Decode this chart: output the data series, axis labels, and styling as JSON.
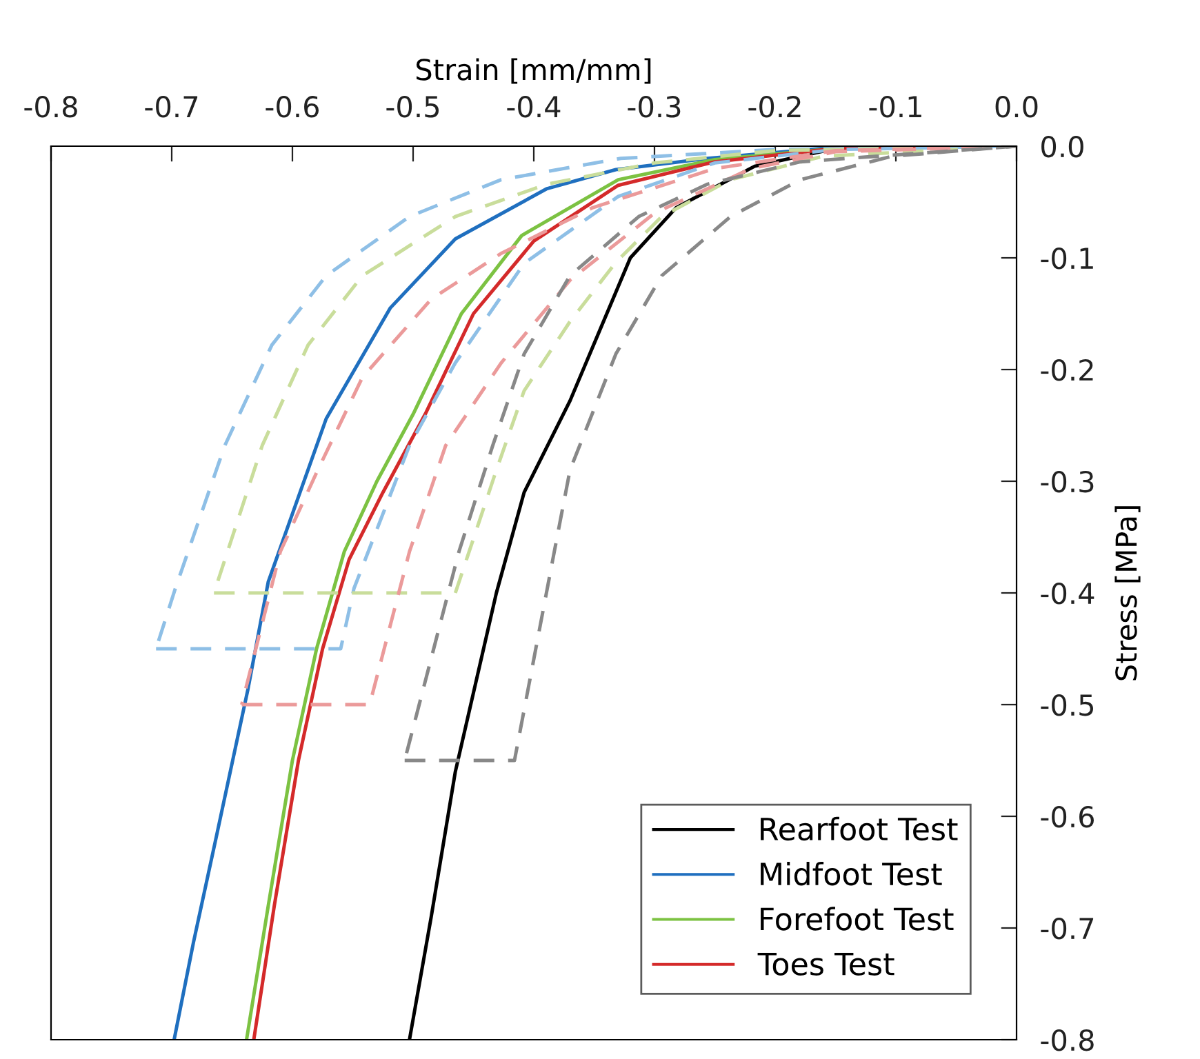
{
  "chart_data": {
    "type": "line",
    "xlabel": "Strain [mm/mm]",
    "ylabel": "Stress [MPa]",
    "xlim": [
      -0.8,
      0.0
    ],
    "ylim": [
      -0.8,
      0.0
    ],
    "xticks": [
      -0.8,
      -0.7,
      -0.6,
      -0.5,
      -0.4,
      -0.3,
      -0.2,
      -0.1,
      {
        "value": 0,
        "label": "0.0"
      }
    ],
    "yticks": [
      {
        "value": 0,
        "label": "0.0"
      },
      -0.1,
      -0.2,
      -0.3,
      -0.4,
      -0.5,
      -0.6,
      -0.7,
      -0.8
    ],
    "grid": false,
    "legend": "bottom right",
    "marker": "none",
    "series": [
      {
        "name": "Rearfoot Test",
        "color": "#000000",
        "line_style": "solid",
        "x": [
          0,
          -0.1,
          -0.15,
          -0.217,
          -0.282,
          -0.32,
          -0.37,
          -0.408,
          -0.431,
          -0.465,
          -0.485,
          -0.503
        ],
        "values": [
          0,
          0,
          -0.002,
          -0.018,
          -0.055,
          -0.1,
          -0.228,
          -0.31,
          -0.4,
          -0.56,
          -0.69,
          -0.8
        ]
      },
      {
        "name": "Midfoot Test",
        "color": "#1f6fbf",
        "line_style": "solid",
        "x": [
          0,
          -0.15,
          -0.256,
          -0.332,
          -0.389,
          -0.465,
          -0.519,
          -0.572,
          -0.62,
          -0.637,
          -0.663,
          -0.682,
          -0.698
        ],
        "values": [
          0,
          -0.001,
          -0.011,
          -0.021,
          -0.038,
          -0.083,
          -0.145,
          -0.244,
          -0.39,
          -0.487,
          -0.618,
          -0.713,
          -0.8
        ]
      },
      {
        "name": "Forefoot Test",
        "color": "#7cc242",
        "line_style": "solid",
        "x": [
          0,
          -0.15,
          -0.25,
          -0.33,
          -0.41,
          -0.46,
          -0.5,
          -0.53,
          -0.557,
          -0.58,
          -0.6,
          -0.62,
          -0.638
        ],
        "values": [
          0,
          -0.002,
          -0.012,
          -0.03,
          -0.08,
          -0.15,
          -0.24,
          -0.3,
          -0.363,
          -0.45,
          -0.55,
          -0.68,
          -0.8
        ]
      },
      {
        "name": "Toes Test",
        "color": "#d42a2a",
        "line_style": "solid",
        "x": [
          0,
          -0.15,
          -0.25,
          -0.33,
          -0.4,
          -0.45,
          -0.49,
          -0.525,
          -0.553,
          -0.575,
          -0.595,
          -0.615,
          -0.632
        ],
        "values": [
          0,
          -0.002,
          -0.014,
          -0.035,
          -0.085,
          -0.15,
          -0.24,
          -0.31,
          -0.37,
          -0.45,
          -0.55,
          -0.68,
          -0.8
        ]
      },
      {
        "color": "#8ebfe6",
        "line_style": "dashed",
        "x": [
          0,
          -0.2,
          -0.328,
          -0.427,
          -0.503,
          -0.572,
          -0.617,
          -0.656,
          -0.697,
          -0.713
        ],
        "values": [
          0,
          -0.003,
          -0.011,
          -0.03,
          -0.063,
          -0.116,
          -0.178,
          -0.268,
          -0.396,
          -0.45
        ]
      },
      {
        "color": "#8ebfe6",
        "line_style": "dashed",
        "x": [
          -0.713,
          -0.56,
          -0.549,
          -0.503,
          -0.465,
          -0.408,
          -0.33,
          -0.25,
          -0.15,
          0
        ],
        "values": [
          -0.45,
          -0.45,
          -0.396,
          -0.268,
          -0.194,
          -0.105,
          -0.045,
          -0.015,
          -0.003,
          0
        ]
      },
      {
        "color": "#c9dd9b",
        "line_style": "dashed",
        "x": [
          0,
          -0.2,
          -0.3,
          -0.389,
          -0.465,
          -0.542,
          -0.587,
          -0.625,
          -0.665
        ],
        "values": [
          0,
          -0.004,
          -0.015,
          -0.034,
          -0.063,
          -0.116,
          -0.178,
          -0.268,
          -0.4
        ]
      },
      {
        "color": "#c9dd9b",
        "line_style": "dashed",
        "x": [
          -0.665,
          -0.465,
          -0.431,
          -0.408,
          -0.37,
          -0.332,
          -0.294,
          -0.237,
          -0.16,
          0
        ],
        "values": [
          -0.4,
          -0.4,
          -0.29,
          -0.219,
          -0.157,
          -0.104,
          -0.063,
          -0.03,
          -0.009,
          0
        ]
      },
      {
        "color": "#eb9a9a",
        "line_style": "dashed",
        "x": [
          0,
          -0.15,
          -0.25,
          -0.351,
          -0.427,
          -0.485,
          -0.542,
          -0.579,
          -0.61,
          -0.642
        ],
        "values": [
          0,
          -0.004,
          -0.02,
          -0.055,
          -0.096,
          -0.137,
          -0.207,
          -0.29,
          -0.363,
          -0.5
        ]
      },
      {
        "color": "#eb9a9a",
        "line_style": "dashed",
        "x": [
          -0.642,
          -0.536,
          -0.503,
          -0.473,
          -0.427,
          -0.37,
          -0.3,
          -0.22,
          -0.15,
          0
        ],
        "values": [
          -0.5,
          -0.5,
          -0.363,
          -0.268,
          -0.194,
          -0.12,
          -0.06,
          -0.02,
          -0.005,
          0
        ]
      },
      {
        "color": "#888888",
        "line_style": "dashed",
        "x": [
          0,
          -0.179,
          -0.256,
          -0.313,
          -0.37,
          -0.408,
          -0.434,
          -0.462,
          -0.507
        ],
        "values": [
          0,
          -0.014,
          -0.034,
          -0.063,
          -0.116,
          -0.186,
          -0.268,
          -0.363,
          -0.55
        ]
      },
      {
        "color": "#888888",
        "line_style": "dashed",
        "x": [
          -0.507,
          -0.416,
          -0.383,
          -0.37,
          -0.332,
          -0.294,
          -0.237,
          -0.179,
          -0.103,
          0
        ],
        "values": [
          -0.55,
          -0.55,
          -0.363,
          -0.29,
          -0.186,
          -0.116,
          -0.063,
          -0.03,
          -0.009,
          0
        ]
      }
    ]
  }
}
